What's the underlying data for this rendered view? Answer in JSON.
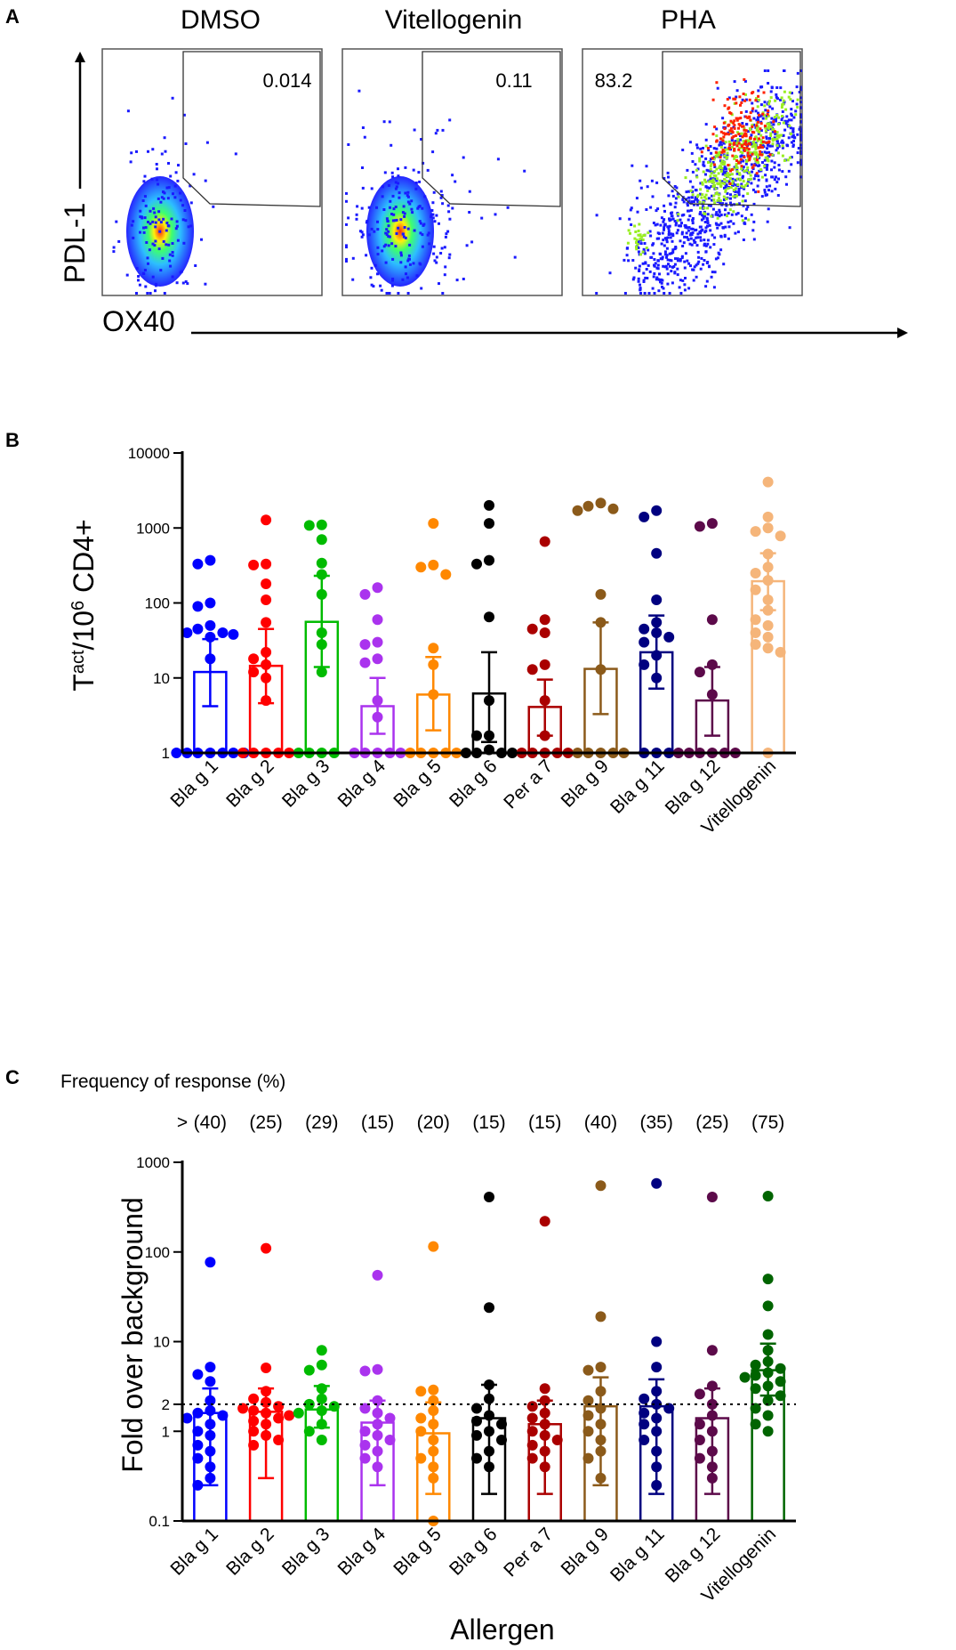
{
  "panels": {
    "a_letter": "A",
    "b_letter": "B",
    "c_letter": "C"
  },
  "flow": {
    "plots": [
      {
        "title": "DMSO",
        "gate_value": "0.014"
      },
      {
        "title": "Vitellogenin",
        "gate_value": "0.11"
      },
      {
        "title": "PHA",
        "gate_value": "83.2"
      }
    ],
    "y_label": "PDL-1",
    "x_label": "OX40",
    "colors": {
      "low": "#1a1aff",
      "mid": "#33ccff",
      "hi": "#ffee00",
      "top": "#ff2200"
    }
  },
  "chart_data": [
    {
      "type": "bar",
      "title": "",
      "ylabel_main": "T",
      "ylabel_sup1": "act",
      "ylabel_mid": "/10",
      "ylabel_sup2": "6",
      "ylabel_end": " CD4+",
      "xlabel": "",
      "yscale": "log",
      "ylim": [
        1,
        10000
      ],
      "ticks": [
        1,
        10,
        100,
        1000,
        10000
      ],
      "tick_labels": [
        "1",
        "10",
        "100",
        "1000",
        "10000"
      ],
      "categories": [
        "Bla g 1",
        "Bla g 2",
        "Bla g 3",
        "Bla g 4",
        "Bla g 5",
        "Bla g 6",
        "Per a 7",
        "Bla g 9",
        "Bla g 11",
        "Bla g 12",
        "Vitellogenin"
      ],
      "colors": [
        "#0000ff",
        "#ff0000",
        "#00bb00",
        "#aa33ee",
        "#ff8800",
        "#000000",
        "#aa0000",
        "#8b5a1a",
        "#000080",
        "#5c0a4a",
        "#f5b57a"
      ],
      "values": [
        12,
        14.5,
        56,
        4.2,
        6,
        6.2,
        4.1,
        13.2,
        22,
        5,
        195
      ],
      "err_low": [
        4.2,
        4.6,
        14,
        1.8,
        2,
        1.4,
        1.7,
        3.3,
        7.2,
        1.7,
        80
      ],
      "err_high": [
        33,
        45,
        230,
        10,
        19,
        22,
        9.5,
        55,
        68,
        14,
        460
      ],
      "points": [
        [
          370,
          330,
          100,
          90,
          50,
          45,
          40,
          40,
          38,
          35,
          18,
          1,
          1,
          1,
          1,
          1,
          1,
          1
        ],
        [
          1280,
          330,
          320,
          180,
          110,
          55,
          22,
          18,
          15,
          12,
          10,
          5,
          1,
          1,
          1,
          1,
          1
        ],
        [
          1100,
          1080,
          700,
          340,
          240,
          130,
          40,
          28,
          12,
          1,
          1,
          1,
          1
        ],
        [
          160,
          130,
          60,
          30,
          28,
          18,
          16,
          5,
          3,
          1,
          1,
          1,
          1,
          1
        ],
        [
          1150,
          320,
          300,
          240,
          25,
          15,
          6,
          1,
          1,
          1,
          1,
          1
        ],
        [
          2000,
          1150,
          370,
          330,
          65,
          5,
          1.7,
          1.7,
          1.1,
          1,
          1,
          1,
          1
        ],
        [
          660,
          60,
          45,
          40,
          15,
          13,
          5,
          1.7,
          1,
          1,
          1,
          1,
          1
        ],
        [
          2150,
          1950,
          1800,
          1700,
          130,
          55,
          13,
          1,
          1,
          1,
          1,
          1
        ],
        [
          1700,
          1400,
          460,
          110,
          55,
          45,
          40,
          35,
          30,
          20,
          15,
          10,
          1,
          1,
          1
        ],
        [
          1150,
          1050,
          60,
          15,
          12,
          6,
          1,
          1,
          1,
          1,
          1,
          1
        ],
        [
          4100,
          1400,
          1000,
          900,
          780,
          450,
          300,
          250,
          200,
          150,
          110,
          80,
          60,
          50,
          40,
          35,
          28,
          25,
          22,
          1
        ]
      ]
    },
    {
      "type": "bar",
      "title": "Frequency of response (%)",
      "ylabel": "Fold over background",
      "xlabel": "Allergen",
      "yscale": "log",
      "ylim": [
        0.1,
        1000
      ],
      "ticks": [
        0.1,
        1,
        2,
        10,
        100,
        1000
      ],
      "tick_labels": [
        "0.1",
        "1",
        "2",
        "10",
        "100",
        "1000"
      ],
      "reference_line": 2,
      "freq_prefix": ">",
      "frequency_labels": [
        "(40)",
        "(25)",
        "(29)",
        "(15)",
        "(20)",
        "(15)",
        "(15)",
        "(40)",
        "(35)",
        "(25)",
        "(75)"
      ],
      "categories": [
        "Bla g 1",
        "Bla g 2",
        "Bla g 3",
        "Bla g 4",
        "Bla g 5",
        "Bla g 6",
        "Per a 7",
        "Bla g 9",
        "Bla g 11",
        "Bla g 12",
        "Vitellogenin"
      ],
      "colors": [
        "#0000ff",
        "#ff0000",
        "#00bb00",
        "#aa33ee",
        "#ff8800",
        "#000000",
        "#aa0000",
        "#8b5a1a",
        "#000080",
        "#5c0a4a",
        "#006400"
      ],
      "values": [
        1.6,
        1.65,
        1.75,
        1.25,
        0.95,
        1.4,
        1.2,
        1.9,
        1.9,
        1.4,
        4.8
      ],
      "err_low": [
        0.25,
        0.3,
        1.1,
        0.25,
        0.2,
        0.2,
        0.2,
        0.25,
        0.2,
        0.2,
        2.5
      ],
      "err_high": [
        3,
        3,
        3.2,
        2.2,
        2.1,
        3.3,
        2.2,
        4,
        3.8,
        3,
        9.5
      ],
      "points": [
        [
          77,
          5.2,
          4.3,
          3.6,
          2.2,
          1.7,
          1.6,
          1.5,
          1.4,
          1.2,
          1.0,
          0.9,
          0.7,
          0.6,
          0.5,
          0.4,
          0.3,
          0.25
        ],
        [
          110,
          5.1,
          2.8,
          2.3,
          2.1,
          1.9,
          1.8,
          1.7,
          1.6,
          1.5,
          1.4,
          1.3,
          1.2,
          1.0,
          0.9,
          0.8,
          0.7
        ],
        [
          8,
          5.5,
          4.8,
          3,
          2.3,
          2,
          1.9,
          1.7,
          1.6,
          1.2,
          1.0,
          0.8
        ],
        [
          55,
          4.9,
          4.7,
          2.2,
          1.8,
          1.6,
          1.4,
          1.2,
          1.0,
          0.9,
          0.8,
          0.7,
          0.6,
          0.5,
          0.4
        ],
        [
          115,
          2.9,
          2.8,
          2.2,
          1.7,
          1.4,
          1.2,
          1.0,
          0.8,
          0.6,
          0.5,
          0.4,
          0.3,
          0.1
        ],
        [
          410,
          24,
          3.3,
          2.3,
          1.8,
          1.5,
          1.3,
          1.2,
          1.0,
          0.9,
          0.8,
          0.6,
          0.5,
          0.4
        ],
        [
          220,
          3,
          2.2,
          1.9,
          1.6,
          1.4,
          1.2,
          1.0,
          0.9,
          0.8,
          0.7,
          0.6,
          0.5,
          0.4
        ],
        [
          550,
          19,
          5.2,
          4.8,
          2.8,
          2.2,
          1.8,
          1.5,
          1.2,
          1.0,
          0.8,
          0.6,
          0.5,
          0.3
        ],
        [
          580,
          10,
          5.2,
          2.8,
          2.3,
          2.0,
          1.8,
          1.6,
          1.4,
          1.2,
          1.0,
          0.8,
          0.6,
          0.4,
          0.25
        ],
        [
          410,
          8,
          3.2,
          2.6,
          2.0,
          1.5,
          1.2,
          1.0,
          0.8,
          0.6,
          0.5,
          0.4,
          0.3
        ],
        [
          420,
          50,
          25,
          12,
          8,
          6,
          5.5,
          5,
          4.5,
          4.2,
          4,
          3.6,
          3.2,
          3,
          2.5,
          2.2,
          1.8,
          1.5,
          1.2,
          1
        ]
      ]
    }
  ]
}
